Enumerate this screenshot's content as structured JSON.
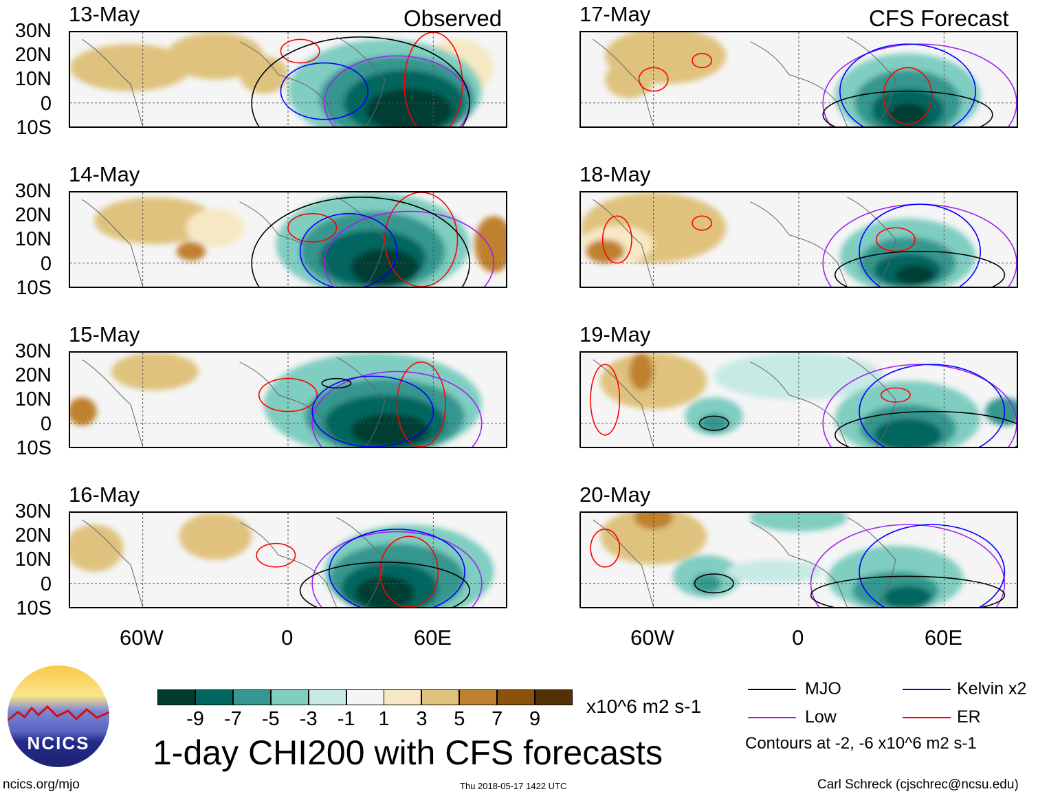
{
  "title": "1-day CHI200 with CFS forecasts",
  "observed_label": "Observed",
  "forecast_label": "CFS Forecast",
  "lat_ticks": [
    "30N",
    "20N",
    "10N",
    "0",
    "10S"
  ],
  "lon_ticks": [
    "60W",
    "0",
    "60E"
  ],
  "colorbar": {
    "colors": [
      "#003c30",
      "#01665e",
      "#35978f",
      "#80cdc1",
      "#c7eae5",
      "#f5f5f5",
      "#f6e8c3",
      "#dfc27d",
      "#bf812d",
      "#8c510a",
      "#543005"
    ],
    "labels": [
      "-9",
      "-7",
      "-5",
      "-3",
      "-1",
      "1",
      "3",
      "5",
      "7",
      "9"
    ],
    "units": "x10^6 m2 s-1"
  },
  "legend": {
    "mjo": "MJO",
    "kelvin": "Kelvin x2",
    "low": "Low",
    "er": "ER",
    "contours": "Contours at -2, -6 x10^6 m2 s-1",
    "colors": {
      "mjo": "#000000",
      "kelvin": "#0000ff",
      "low": "#a020f0",
      "er": "#ff0000"
    }
  },
  "logo": {
    "text": "NCICS"
  },
  "footer": {
    "url": "ncics.org/mjo",
    "timestamp": "Thu 2018-05-17 1422 UTC",
    "author": "Carl Schreck (cjschrec@ncsu.edu)"
  },
  "panels": [
    {
      "date": "13-May",
      "blobs": [
        [
          -65,
          15,
          25,
          10,
          7
        ],
        [
          -30,
          20,
          20,
          10,
          7
        ],
        [
          -10,
          12,
          10,
          8,
          7
        ],
        [
          70,
          15,
          15,
          12,
          6
        ],
        [
          40,
          5,
          40,
          22,
          3
        ],
        [
          45,
          2,
          32,
          18,
          2
        ],
        [
          48,
          0,
          25,
          14,
          1
        ],
        [
          50,
          -3,
          18,
          9,
          0
        ]
      ],
      "contours": [
        [
          "er",
          5,
          22,
          8,
          5
        ],
        [
          "er",
          60,
          8,
          12,
          22
        ],
        [
          "low",
          45,
          0,
          30,
          20
        ],
        [
          "kelvin",
          15,
          5,
          18,
          12
        ],
        [
          "mjo",
          30,
          0,
          45,
          28
        ]
      ]
    },
    {
      "date": "14-May",
      "blobs": [
        [
          -55,
          18,
          25,
          10,
          7
        ],
        [
          -30,
          15,
          12,
          8,
          6
        ],
        [
          -40,
          5,
          6,
          4,
          8
        ],
        [
          85,
          8,
          8,
          12,
          8
        ],
        [
          35,
          8,
          40,
          22,
          3
        ],
        [
          35,
          5,
          30,
          17,
          2
        ],
        [
          35,
          2,
          22,
          12,
          1
        ],
        [
          40,
          -2,
          14,
          8,
          0
        ]
      ],
      "contours": [
        [
          "er",
          10,
          15,
          10,
          6
        ],
        [
          "er",
          55,
          10,
          15,
          20
        ],
        [
          "low",
          50,
          0,
          35,
          22
        ],
        [
          "kelvin",
          25,
          5,
          20,
          16
        ],
        [
          "mjo",
          30,
          0,
          45,
          28
        ]
      ]
    },
    {
      "date": "15-May",
      "blobs": [
        [
          -55,
          22,
          18,
          8,
          7
        ],
        [
          -85,
          5,
          6,
          6,
          8
        ],
        [
          35,
          8,
          45,
          22,
          3
        ],
        [
          40,
          3,
          33,
          16,
          2
        ],
        [
          40,
          0,
          25,
          12,
          1
        ],
        [
          42,
          -3,
          16,
          7,
          0
        ]
      ],
      "contours": [
        [
          "er",
          0,
          12,
          12,
          7
        ],
        [
          "er",
          55,
          8,
          10,
          18
        ],
        [
          "low",
          45,
          0,
          35,
          22
        ],
        [
          "kelvin",
          35,
          5,
          25,
          15
        ],
        [
          "mjo",
          20,
          17,
          6,
          2
        ]
      ]
    },
    {
      "date": "16-May",
      "blobs": [
        [
          -80,
          15,
          12,
          10,
          7
        ],
        [
          -30,
          20,
          15,
          10,
          7
        ],
        [
          50,
          5,
          35,
          20,
          3
        ],
        [
          45,
          2,
          28,
          15,
          2
        ],
        [
          42,
          -2,
          20,
          11,
          1
        ],
        [
          40,
          -4,
          12,
          7,
          0
        ]
      ],
      "contours": [
        [
          "er",
          -5,
          12,
          8,
          5
        ],
        [
          "er",
          50,
          5,
          12,
          15
        ],
        [
          "low",
          45,
          0,
          35,
          22
        ],
        [
          "kelvin",
          45,
          5,
          28,
          18
        ],
        [
          "mjo",
          40,
          -3,
          35,
          12
        ]
      ]
    },
    {
      "date": "17-May",
      "blobs": [
        [
          -55,
          20,
          25,
          12,
          7
        ],
        [
          -70,
          10,
          10,
          8,
          7
        ],
        [
          45,
          3,
          30,
          18,
          3
        ],
        [
          45,
          0,
          22,
          14,
          2
        ],
        [
          45,
          -3,
          15,
          9,
          1
        ],
        [
          45,
          -5,
          8,
          5,
          0
        ]
      ],
      "contours": [
        [
          "er",
          -60,
          10,
          6,
          5
        ],
        [
          "er",
          -40,
          18,
          4,
          3
        ],
        [
          "er",
          45,
          3,
          10,
          12
        ],
        [
          "low",
          50,
          0,
          40,
          25
        ],
        [
          "kelvin",
          45,
          5,
          28,
          20
        ],
        [
          "mjo",
          45,
          -5,
          35,
          10
        ]
      ]
    },
    {
      "date": "18-May",
      "blobs": [
        [
          -60,
          15,
          30,
          15,
          7
        ],
        [
          -75,
          8,
          15,
          8,
          6
        ],
        [
          -80,
          5,
          8,
          5,
          8
        ],
        [
          45,
          3,
          28,
          16,
          3
        ],
        [
          45,
          0,
          20,
          11,
          2
        ],
        [
          45,
          -3,
          14,
          7,
          1
        ],
        [
          48,
          -5,
          8,
          4,
          0
        ]
      ],
      "contours": [
        [
          "er",
          -75,
          10,
          6,
          10
        ],
        [
          "er",
          -40,
          17,
          4,
          3
        ],
        [
          "er",
          40,
          10,
          8,
          5
        ],
        [
          "low",
          50,
          0,
          40,
          25
        ],
        [
          "kelvin",
          50,
          5,
          25,
          20
        ],
        [
          "mjo",
          50,
          -5,
          35,
          10
        ]
      ]
    },
    {
      "date": "19-May",
      "blobs": [
        [
          -60,
          18,
          22,
          12,
          7
        ],
        [
          -65,
          22,
          5,
          8,
          8
        ],
        [
          -35,
          3,
          12,
          8,
          3
        ],
        [
          -35,
          0,
          6,
          4,
          2
        ],
        [
          0,
          20,
          35,
          10,
          4
        ],
        [
          45,
          2,
          30,
          16,
          3
        ],
        [
          45,
          -2,
          20,
          10,
          2
        ],
        [
          45,
          -5,
          14,
          7,
          1
        ],
        [
          85,
          5,
          8,
          6,
          2
        ]
      ],
      "contours": [
        [
          "er",
          -80,
          10,
          6,
          15
        ],
        [
          "er",
          40,
          12,
          6,
          3
        ],
        [
          "mjo",
          -35,
          0,
          6,
          3
        ],
        [
          "low",
          50,
          0,
          40,
          25
        ],
        [
          "kelvin",
          55,
          5,
          30,
          20
        ],
        [
          "mjo",
          55,
          -5,
          40,
          10
        ]
      ]
    },
    {
      "date": "20-May",
      "blobs": [
        [
          -60,
          20,
          22,
          12,
          7
        ],
        [
          -60,
          28,
          8,
          5,
          8
        ],
        [
          -38,
          3,
          14,
          9,
          3
        ],
        [
          -38,
          0,
          6,
          4,
          2
        ],
        [
          -10,
          5,
          20,
          5,
          4
        ],
        [
          0,
          28,
          20,
          6,
          3
        ],
        [
          40,
          2,
          28,
          14,
          3
        ],
        [
          40,
          -3,
          18,
          8,
          2
        ],
        [
          45,
          -6,
          10,
          5,
          1
        ]
      ],
      "contours": [
        [
          "er",
          -80,
          15,
          6,
          8
        ],
        [
          "mjo",
          -35,
          0,
          8,
          4
        ],
        [
          "low",
          45,
          0,
          40,
          25
        ],
        [
          "kelvin",
          55,
          5,
          30,
          20
        ],
        [
          "mjo",
          45,
          -5,
          40,
          8
        ]
      ]
    }
  ]
}
